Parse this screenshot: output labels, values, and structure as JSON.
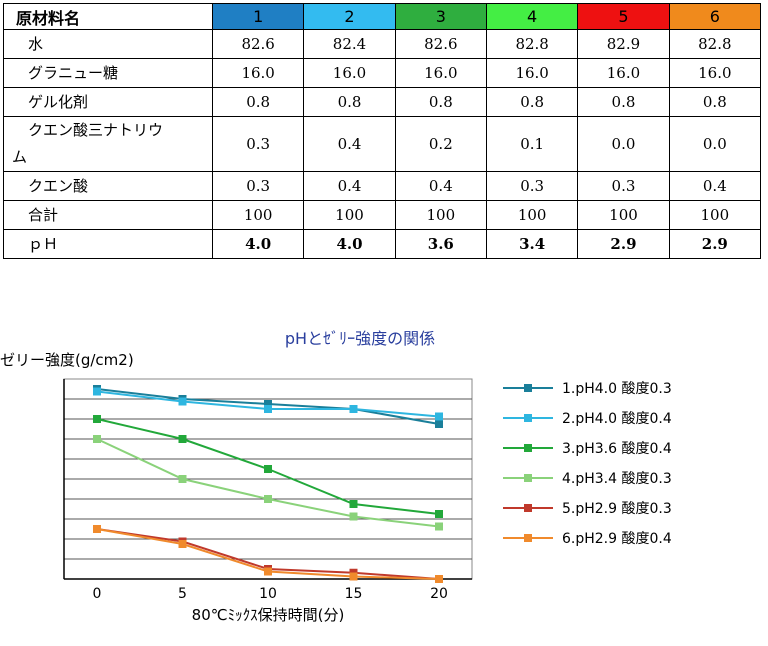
{
  "table": {
    "header_label": "原材料名",
    "columns": [
      {
        "label": "1",
        "color": "#1f7fc4"
      },
      {
        "label": "2",
        "color": "#33bbf0"
      },
      {
        "label": "3",
        "color": "#2fae3f"
      },
      {
        "label": "4",
        "color": "#44ee44"
      },
      {
        "label": "5",
        "color": "#ee1111"
      },
      {
        "label": "6",
        "color": "#f08a1c"
      }
    ],
    "rows": [
      {
        "name": "水",
        "values": [
          "82.6",
          "82.4",
          "82.6",
          "82.8",
          "82.9",
          "82.8"
        ]
      },
      {
        "name": "グラニュー糖",
        "values": [
          "16.0",
          "16.0",
          "16.0",
          "16.0",
          "16.0",
          "16.0"
        ]
      },
      {
        "name": "ゲル化剤",
        "values": [
          "0.8",
          "0.8",
          "0.8",
          "0.8",
          "0.8",
          "0.8"
        ]
      },
      {
        "name_line1": "クエン酸三ナトリウ",
        "name_line2": "ム",
        "values": [
          "0.3",
          "0.4",
          "0.2",
          "0.1",
          "0.0",
          "0.0"
        ]
      },
      {
        "name": "クエン酸",
        "values": [
          "0.3",
          "0.4",
          "0.4",
          "0.3",
          "0.3",
          "0.4"
        ]
      },
      {
        "name": "合計",
        "values": [
          "100",
          "100",
          "100",
          "100",
          "100",
          "100"
        ]
      },
      {
        "name": "ｐＨ",
        "values": [
          "4.0",
          "4.0",
          "3.6",
          "3.4",
          "2.9",
          "2.9"
        ]
      }
    ]
  },
  "chart_data": {
    "type": "line",
    "title": "pHとｾﾞﾘｰ強度の関係",
    "ylabel": "ゼリー強度(g/cm2)",
    "xlabel": "80℃ﾐｯｸｽ保持時間(分)",
    "x": [
      0,
      5,
      10,
      15,
      20
    ],
    "ylim": [
      0,
      8
    ],
    "grid": true,
    "legend_position": "right",
    "series": [
      {
        "name": "1.pH4.0 酸度0.3",
        "color": "#1a7f9a",
        "values": [
          7.6,
          7.2,
          7.0,
          6.8,
          6.2
        ]
      },
      {
        "name": "2.pH4.0 酸度0.4",
        "color": "#2eb6e0",
        "values": [
          7.5,
          7.1,
          6.8,
          6.8,
          6.5
        ]
      },
      {
        "name": "3.pH3.6 酸度0.4",
        "color": "#22a83a",
        "values": [
          6.4,
          5.6,
          4.4,
          3.0,
          2.6
        ]
      },
      {
        "name": "4.pH3.4 酸度0.3",
        "color": "#8ad27a",
        "values": [
          5.6,
          4.0,
          3.2,
          2.5,
          2.1
        ]
      },
      {
        "name": "5.pH2.9 酸度0.3",
        "color": "#c0392b",
        "values": [
          2.0,
          1.5,
          0.4,
          0.25,
          0.0
        ]
      },
      {
        "name": "6.pH2.9 酸度0.4",
        "color": "#f08a2c",
        "values": [
          2.0,
          1.4,
          0.3,
          0.1,
          0.0
        ]
      }
    ]
  }
}
